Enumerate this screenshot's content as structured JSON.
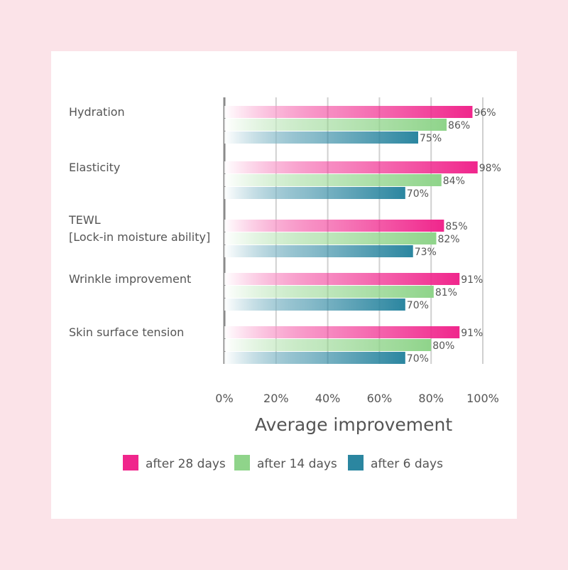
{
  "colors": {
    "series": [
      "#f0268c",
      "#8fd48a",
      "#2b86a0"
    ],
    "grid": "#d0d0d0",
    "axis": "#8a8a8a"
  },
  "chart_data": {
    "type": "bar",
    "orientation": "horizontal",
    "categories": [
      [
        "Hydration"
      ],
      [
        "Elasticity"
      ],
      [
        "TEWL",
        "[Lock-in moisture ability]"
      ],
      [
        "Wrinkle improvement"
      ],
      [
        "Skin surface tension"
      ]
    ],
    "series": [
      {
        "name": "after 28 days",
        "values": [
          96,
          98,
          85,
          91,
          91
        ]
      },
      {
        "name": "after 14 days",
        "values": [
          86,
          84,
          82,
          81,
          80
        ]
      },
      {
        "name": "after 6 days",
        "values": [
          75,
          70,
          73,
          70,
          70
        ]
      }
    ],
    "value_labels": [
      [
        "96%",
        "98%",
        "85%",
        "91%",
        "91%"
      ],
      [
        "86%",
        "84%",
        "82%",
        "81%",
        "80%"
      ],
      [
        "75%",
        "70%",
        "73%",
        "70%",
        "70%"
      ]
    ],
    "xticks": [
      "0%",
      "20%",
      "40%",
      "60%",
      "80%",
      "100%"
    ],
    "xlim": [
      0,
      100
    ],
    "xlabel": "Average improvement",
    "grid": true,
    "legend_position": "bottom"
  }
}
